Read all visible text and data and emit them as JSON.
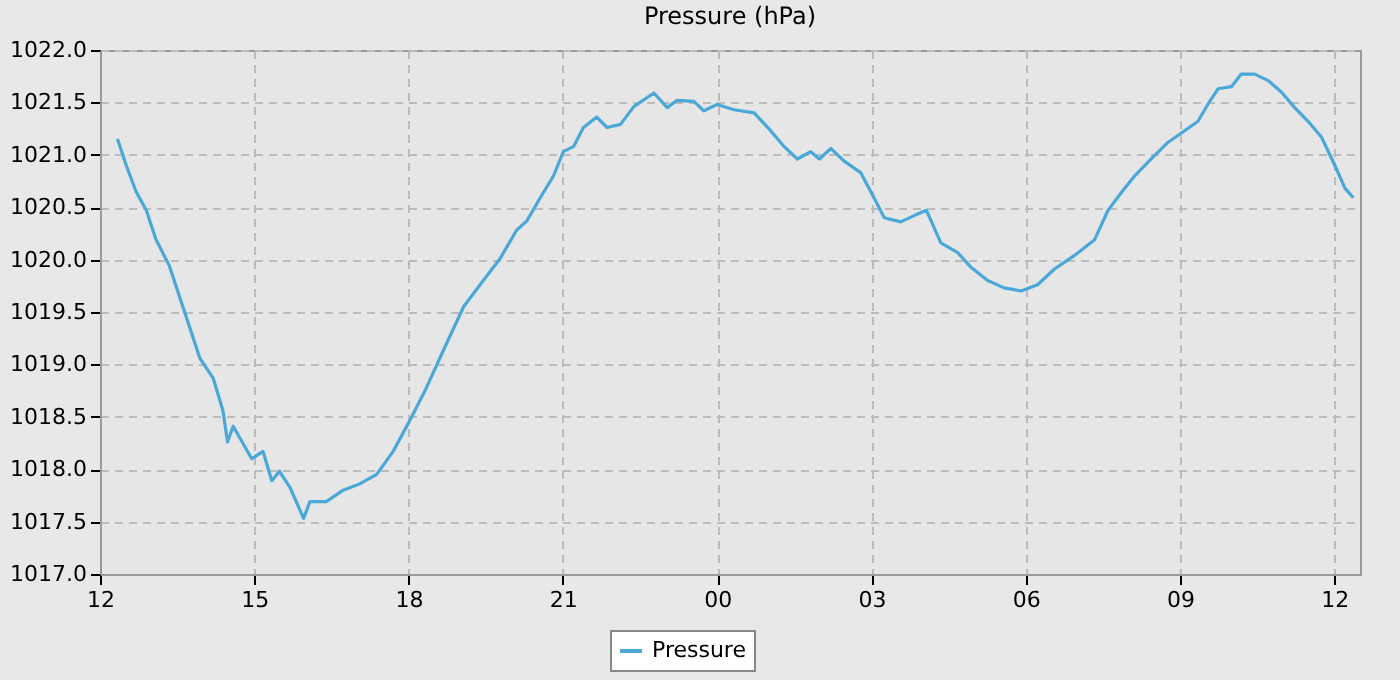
{
  "chart_data": {
    "type": "line",
    "title": "Pressure (hPa)",
    "x": [
      12.34,
      12.51,
      12.7,
      12.9,
      13.09,
      13.35,
      13.55,
      13.74,
      13.94,
      14.2,
      14.39,
      14.48,
      14.59,
      14.95,
      15.17,
      15.34,
      15.49,
      15.69,
      15.96,
      16.08,
      16.4,
      16.73,
      17.05,
      17.38,
      17.7,
      18.03,
      18.35,
      18.72,
      19.07,
      19.39,
      19.78,
      20.1,
      20.3,
      20.56,
      20.82,
      21.01,
      21.21,
      21.4,
      21.66,
      21.86,
      22.12,
      22.38,
      22.77,
      23.03,
      23.22,
      23.55,
      23.74,
      24.0,
      24.33,
      24.72,
      25.04,
      25.3,
      25.56,
      25.82,
      25.99,
      26.21,
      26.47,
      26.79,
      27.05,
      27.25,
      27.57,
      27.83,
      28.07,
      28.35,
      28.67,
      28.93,
      29.26,
      29.58,
      29.91,
      30.23,
      30.56,
      30.95,
      31.34,
      31.6,
      31.86,
      32.12,
      32.44,
      32.77,
      33.09,
      33.35,
      33.54,
      33.74,
      34.0,
      34.19,
      34.45,
      34.71,
      34.97,
      35.23,
      35.49,
      35.75,
      36.01,
      36.21,
      36.37
    ],
    "series": [
      {
        "name": "Pressure",
        "color": "#4aa8d8",
        "values": [
          1021.15,
          1020.9,
          1020.65,
          1020.47,
          1020.19,
          1019.94,
          1019.64,
          1019.36,
          1019.06,
          1018.87,
          1018.56,
          1018.26,
          1018.41,
          1018.1,
          1018.17,
          1017.89,
          1017.98,
          1017.83,
          1017.53,
          1017.69,
          1017.69,
          1017.8,
          1017.86,
          1017.95,
          1018.17,
          1018.47,
          1018.78,
          1019.18,
          1019.55,
          1019.76,
          1020.01,
          1020.28,
          1020.37,
          1020.59,
          1020.8,
          1021.03,
          1021.08,
          1021.26,
          1021.36,
          1021.26,
          1021.29,
          1021.46,
          1021.59,
          1021.45,
          1021.52,
          1021.51,
          1021.42,
          1021.48,
          1021.43,
          1021.4,
          1021.23,
          1021.08,
          1020.96,
          1021.03,
          1020.96,
          1021.06,
          1020.94,
          1020.83,
          1020.59,
          1020.4,
          1020.36,
          1020.42,
          1020.47,
          1020.16,
          1020.07,
          1019.93,
          1019.8,
          1019.73,
          1019.7,
          1019.76,
          1019.91,
          1020.04,
          1020.19,
          1020.47,
          1020.64,
          1020.8,
          1020.96,
          1021.12,
          1021.23,
          1021.32,
          1021.48,
          1021.63,
          1021.65,
          1021.77,
          1021.77,
          1021.71,
          1021.6,
          1021.45,
          1021.32,
          1021.17,
          1020.9,
          1020.68,
          1020.59
        ]
      }
    ],
    "xlim": [
      12,
      36.5
    ],
    "xticks": [
      {
        "value": 12,
        "label": "12"
      },
      {
        "value": 15,
        "label": "15"
      },
      {
        "value": 18,
        "label": "18"
      },
      {
        "value": 21,
        "label": "21"
      },
      {
        "value": 24,
        "label": "00"
      },
      {
        "value": 27,
        "label": "03"
      },
      {
        "value": 30,
        "label": "06"
      },
      {
        "value": 33,
        "label": "09"
      },
      {
        "value": 36,
        "label": "12"
      }
    ],
    "ylim": [
      1017.0,
      1022.0
    ],
    "yticks": [
      {
        "value": 1017,
        "label": "1017.0"
      },
      {
        "value": 1017.5,
        "label": "1017.5"
      },
      {
        "value": 1018,
        "label": "1018.0"
      },
      {
        "value": 1018.5,
        "label": "1018.5"
      },
      {
        "value": 1019,
        "label": "1019.0"
      },
      {
        "value": 1019.5,
        "label": "1019.5"
      },
      {
        "value": 1020,
        "label": "1020.0"
      },
      {
        "value": 1020.5,
        "label": "1020.5"
      },
      {
        "value": 1021,
        "label": "1021.0"
      },
      {
        "value": 1021.5,
        "label": "1021.5"
      },
      {
        "value": 1022,
        "label": "1022.0"
      }
    ],
    "grid": true,
    "legend": "bottom",
    "line_style": "solid",
    "marker": "none"
  }
}
